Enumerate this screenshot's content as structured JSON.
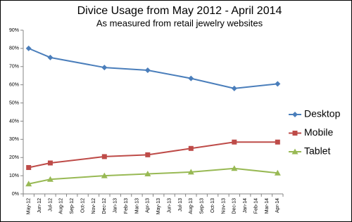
{
  "chart_data": {
    "type": "line",
    "title": "Divice Usage from May 2012 - April 2014",
    "subtitle": "As measured from retail jewelry websites",
    "categories": [
      "May-12",
      "Jun-12",
      "Jul-12",
      "Aug-12",
      "Sep-12",
      "Oct-12",
      "Nov-12",
      "Dec-12",
      "Jan-13",
      "Feb-13",
      "Mar-13",
      "Apr-13",
      "May-13",
      "Jun-13",
      "Jul-13",
      "Aug-13",
      "Sep-13",
      "Oct-13",
      "Nov-13",
      "Dec-13",
      "Jan-14",
      "Feb-14",
      "Mar-14",
      "Apr-14"
    ],
    "series": [
      {
        "name": "Desktop",
        "color": "#4a7ebb",
        "marker": "diamond",
        "values": [
          80,
          null,
          75,
          null,
          null,
          null,
          null,
          69.5,
          null,
          null,
          null,
          68,
          null,
          null,
          null,
          63.5,
          null,
          null,
          null,
          58,
          null,
          null,
          null,
          60.5
        ]
      },
      {
        "name": "Mobile",
        "color": "#be4b48",
        "marker": "square",
        "values": [
          14.5,
          null,
          17,
          null,
          null,
          null,
          null,
          20.5,
          null,
          null,
          null,
          21.5,
          null,
          null,
          null,
          25,
          null,
          null,
          null,
          28.5,
          null,
          null,
          null,
          28.5
        ]
      },
      {
        "name": "Tablet",
        "color": "#98b954",
        "marker": "triangle",
        "values": [
          5.5,
          null,
          8,
          null,
          null,
          null,
          null,
          10,
          null,
          null,
          null,
          11,
          null,
          null,
          null,
          12,
          null,
          null,
          null,
          14,
          null,
          null,
          null,
          11.5
        ]
      }
    ],
    "ylim": [
      0,
      90
    ],
    "yticks": [
      {
        "value": 0,
        "label": "0%"
      },
      {
        "value": 10,
        "label": "10%"
      },
      {
        "value": 20,
        "label": "20%"
      },
      {
        "value": 30,
        "label": "30%"
      },
      {
        "value": 40,
        "label": "40%"
      },
      {
        "value": 50,
        "label": "50%"
      },
      {
        "value": 60,
        "label": "60%"
      },
      {
        "value": 70,
        "label": "70%"
      },
      {
        "value": 80,
        "label": "80%"
      },
      {
        "value": 90,
        "label": "90%"
      }
    ],
    "grid": false,
    "legend": "right"
  }
}
